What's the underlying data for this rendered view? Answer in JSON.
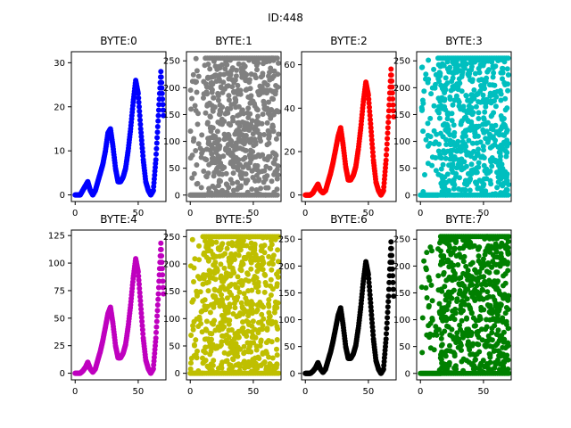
{
  "figure": {
    "title": "ID:448"
  },
  "chart_data": [
    {
      "type": "scatter",
      "title": "BYTE:0",
      "color": "#0000ff",
      "xlim": [
        -3,
        72
      ],
      "ylim": [
        -1.5,
        32.5
      ],
      "xticks": [
        0,
        50
      ],
      "yticks": [
        0,
        10,
        20,
        30
      ],
      "pattern": "peaks",
      "x": [
        0,
        2,
        4,
        6,
        8,
        10,
        12,
        14,
        16,
        18,
        20,
        22,
        24,
        26,
        28,
        30,
        32,
        34,
        36,
        38,
        40,
        42,
        44,
        46,
        48,
        50,
        52,
        54,
        56,
        58,
        60,
        62,
        64,
        66,
        68,
        70
      ],
      "y": [
        0,
        0,
        0,
        1,
        2,
        3,
        1,
        0,
        1,
        3,
        5,
        7,
        10,
        14,
        15,
        11,
        6,
        3,
        3,
        4,
        6,
        10,
        15,
        21,
        26,
        23,
        15,
        8,
        3,
        1,
        0,
        1,
        8,
        18,
        28,
        18
      ]
    },
    {
      "type": "scatter",
      "title": "BYTE:1",
      "color": "#808080",
      "xlim": [
        -3,
        72
      ],
      "ylim": [
        -12,
        267
      ],
      "xticks": [
        0,
        50
      ],
      "yticks": [
        0,
        50,
        100,
        150,
        200,
        250
      ],
      "pattern": "noise",
      "y_range": [
        0,
        255
      ],
      "x_range": [
        0,
        70
      ],
      "dense_start": 12
    },
    {
      "type": "scatter",
      "title": "BYTE:2",
      "color": "#ff0000",
      "xlim": [
        -3,
        72
      ],
      "ylim": [
        -3,
        66
      ],
      "xticks": [
        0,
        50
      ],
      "yticks": [
        0,
        20,
        40,
        60
      ],
      "pattern": "peaks",
      "x": [
        0,
        2,
        4,
        6,
        8,
        10,
        12,
        14,
        16,
        18,
        20,
        22,
        24,
        26,
        28,
        30,
        32,
        34,
        36,
        38,
        40,
        42,
        44,
        46,
        48,
        50,
        52,
        54,
        56,
        58,
        60,
        62,
        64,
        66,
        68,
        70
      ],
      "y": [
        0,
        0,
        0,
        1,
        3,
        5,
        2,
        1,
        2,
        6,
        10,
        15,
        21,
        27,
        31,
        23,
        13,
        7,
        7,
        9,
        13,
        21,
        31,
        43,
        52,
        46,
        31,
        16,
        6,
        2,
        0,
        2,
        16,
        36,
        58,
        36
      ]
    },
    {
      "type": "scatter",
      "title": "BYTE:3",
      "color": "#00bfbf",
      "xlim": [
        -3,
        72
      ],
      "ylim": [
        -12,
        267
      ],
      "xticks": [
        0,
        50
      ],
      "yticks": [
        0,
        50,
        100,
        150,
        200,
        250
      ],
      "pattern": "noise",
      "y_range": [
        0,
        255
      ],
      "x_range": [
        0,
        70
      ],
      "dense_start": 14
    },
    {
      "type": "scatter",
      "title": "BYTE:4",
      "color": "#bf00bf",
      "xlim": [
        -3,
        72
      ],
      "ylim": [
        -6,
        130
      ],
      "xticks": [
        0,
        50
      ],
      "yticks": [
        0,
        25,
        50,
        75,
        100,
        125
      ],
      "pattern": "peaks",
      "x": [
        0,
        2,
        4,
        6,
        8,
        10,
        12,
        14,
        16,
        18,
        20,
        22,
        24,
        26,
        28,
        30,
        32,
        34,
        36,
        38,
        40,
        42,
        44,
        46,
        48,
        50,
        52,
        54,
        56,
        58,
        60,
        62,
        64,
        66,
        68,
        70
      ],
      "y": [
        0,
        0,
        0,
        2,
        5,
        10,
        4,
        1,
        4,
        12,
        20,
        30,
        42,
        54,
        60,
        45,
        25,
        14,
        14,
        18,
        26,
        42,
        62,
        86,
        104,
        92,
        62,
        32,
        12,
        4,
        0,
        4,
        32,
        72,
        118,
        72
      ]
    },
    {
      "type": "scatter",
      "title": "BYTE:5",
      "color": "#bfbf00",
      "xlim": [
        -3,
        72
      ],
      "ylim": [
        -12,
        262
      ],
      "xticks": [
        0,
        50
      ],
      "yticks": [
        0,
        50,
        100,
        150,
        200,
        250
      ],
      "pattern": "noise",
      "y_range": [
        0,
        250
      ],
      "x_range": [
        0,
        70
      ],
      "dense_start": 10
    },
    {
      "type": "scatter",
      "title": "BYTE:6",
      "color": "#000000",
      "xlim": [
        -3,
        72
      ],
      "ylim": [
        -12,
        267
      ],
      "xticks": [
        0,
        50
      ],
      "yticks": [
        0,
        50,
        100,
        150,
        200,
        250
      ],
      "pattern": "peaks",
      "x": [
        0,
        2,
        4,
        6,
        8,
        10,
        12,
        14,
        16,
        18,
        20,
        22,
        24,
        26,
        28,
        30,
        32,
        34,
        36,
        38,
        40,
        42,
        44,
        46,
        48,
        50,
        52,
        54,
        56,
        58,
        60,
        62,
        64,
        66,
        68,
        70
      ],
      "y": [
        0,
        0,
        0,
        4,
        10,
        20,
        8,
        2,
        8,
        24,
        40,
        60,
        84,
        108,
        122,
        90,
        50,
        28,
        28,
        36,
        52,
        84,
        124,
        172,
        208,
        184,
        124,
        64,
        24,
        8,
        0,
        8,
        64,
        144,
        245,
        144
      ]
    },
    {
      "type": "scatter",
      "title": "BYTE:7",
      "color": "#008000",
      "xlim": [
        -3,
        72
      ],
      "ylim": [
        -12,
        267
      ],
      "xticks": [
        0,
        50
      ],
      "yticks": [
        0,
        50,
        100,
        150,
        200,
        250
      ],
      "pattern": "noise",
      "y_range": [
        0,
        255
      ],
      "x_range": [
        0,
        70
      ],
      "dense_start": 16
    }
  ]
}
